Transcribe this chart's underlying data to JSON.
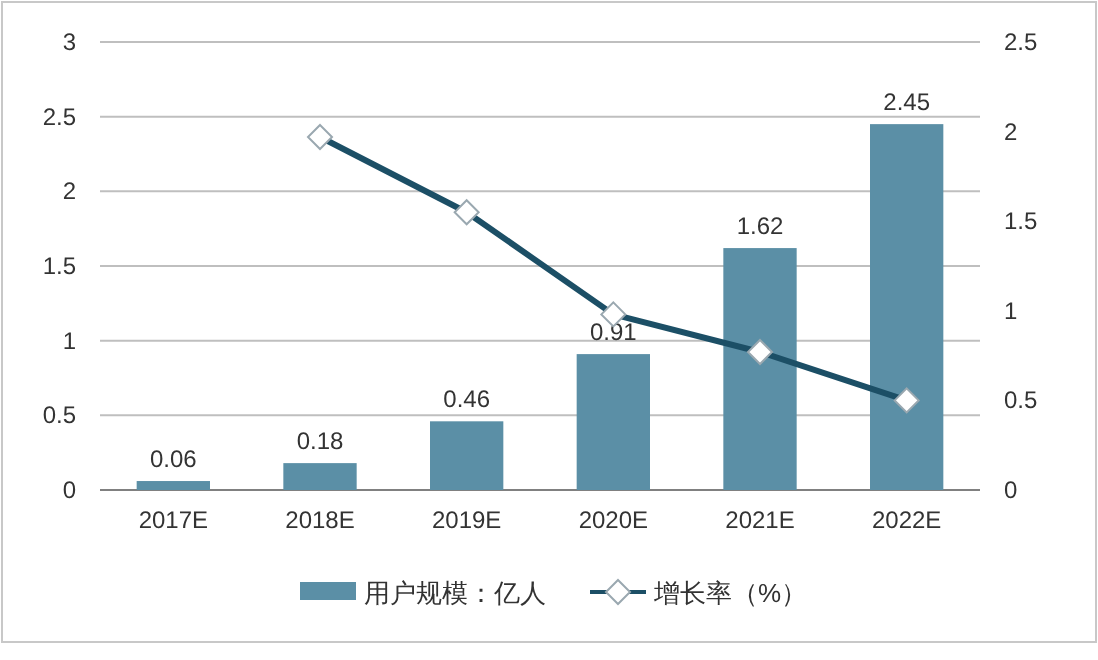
{
  "chart_data": {
    "type": "bar",
    "categories": [
      "2017E",
      "2018E",
      "2019E",
      "2020E",
      "2021E",
      "2022E"
    ],
    "series": [
      {
        "name": "用户规模：亿人",
        "color": "#5b8fa6",
        "values": [
          0.06,
          0.18,
          0.46,
          0.91,
          1.62,
          2.45
        ],
        "value_labels": [
          "0.06",
          "0.18",
          "0.46",
          "0.91",
          "1.62",
          "2.45"
        ]
      },
      {
        "name": "增长率（%）",
        "type": "line",
        "axis": "y2",
        "color": "#1c4f66",
        "marker": "diamond",
        "line_style": "solid",
        "values": [
          null,
          1.97,
          1.55,
          0.98,
          0.77,
          0.5
        ]
      }
    ],
    "ylim": [
      0,
      3
    ],
    "yticks": [
      0,
      0.5,
      1,
      1.5,
      2,
      2.5,
      3
    ],
    "y2lim": [
      0,
      2.5
    ],
    "y2ticks": [
      0,
      0.5,
      1,
      1.5,
      2,
      2.5
    ],
    "grid": "y",
    "legend": "bottom"
  }
}
